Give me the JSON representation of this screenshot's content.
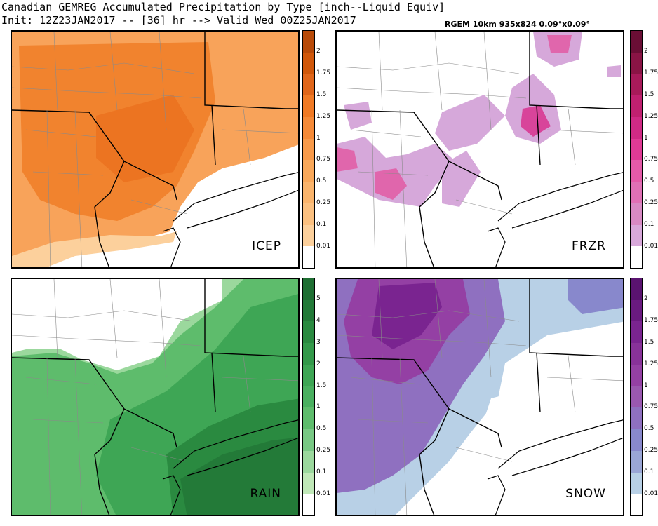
{
  "header": {
    "title": "Canadian GEMREG Accumulated Precipitation by Type [inch--Liquid Equiv]",
    "init": "Init: 12Z23JAN2017 -- [36] hr --> Valid Wed 00Z25JAN2017",
    "model": "RGEM 10km 935x824 0.09°x0.09°"
  },
  "panels": [
    {
      "id": "icep",
      "label": "ICEP",
      "legend_ticks": [
        "2",
        "1.75",
        "1.5",
        "1.25",
        "1",
        "0.75",
        "0.5",
        "0.25",
        "0.1",
        "0.01"
      ],
      "colors": [
        "#b84a08",
        "#d0570a",
        "#e0661a",
        "#f07a25",
        "#f58a38",
        "#f89a4a",
        "#f9a85a",
        "#fab46c",
        "#fbc080",
        "#fcd09c",
        "#ffffff"
      ]
    },
    {
      "id": "frzr",
      "label": "FRZR",
      "legend_ticks": [
        "2",
        "1.75",
        "1.5",
        "1.25",
        "1",
        "0.75",
        "0.5",
        "0.25",
        "0.1",
        "0.01"
      ],
      "colors": [
        "#6a0e35",
        "#8a1445",
        "#a81a5a",
        "#c02070",
        "#d02a85",
        "#e03a95",
        "#e45aa8",
        "#e070b5",
        "#d88ac4",
        "#d8a8da",
        "#ffffff"
      ]
    },
    {
      "id": "rain",
      "label": "RAIN",
      "legend_ticks": [
        "5",
        "4",
        "3",
        "2",
        "1.5",
        "1",
        "0.5",
        "0.25",
        "0.1",
        "0.01"
      ],
      "colors": [
        "#1e6e32",
        "#237a38",
        "#2a8a40",
        "#33994a",
        "#3ea655",
        "#4ab060",
        "#5ebc6c",
        "#78c884",
        "#9bd89d",
        "#c0e8b8",
        "#ffffff"
      ]
    },
    {
      "id": "snow",
      "label": "SNOW",
      "legend_ticks": [
        "2",
        "1.75",
        "1.5",
        "1.25",
        "1",
        "0.75",
        "0.5",
        "0.25",
        "0.1",
        "0.01"
      ],
      "colors": [
        "#5a1370",
        "#6a1a80",
        "#7a2490",
        "#883299",
        "#9440a4",
        "#9a58b0",
        "#8f70c0",
        "#8888cc",
        "#9aa6d6",
        "#b8d0e6",
        "#ffffff"
      ]
    }
  ]
}
